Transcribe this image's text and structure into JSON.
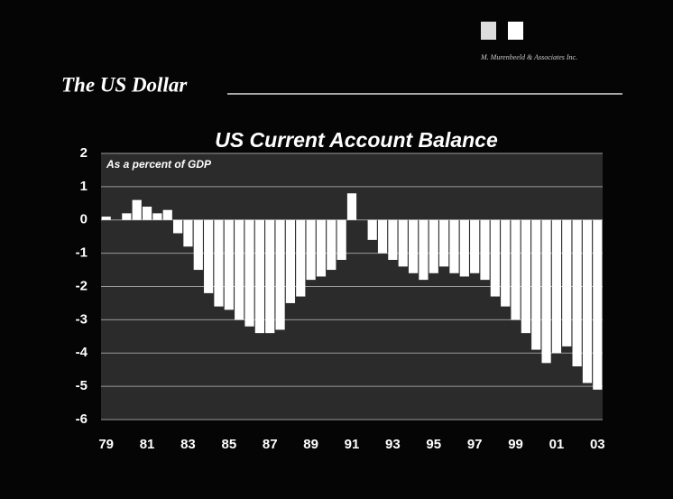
{
  "header": {
    "title": "The US Dollar",
    "logo_text": "M. Murenbeeld & Associates Inc."
  },
  "chart_data": {
    "type": "bar",
    "title": "US Current Account Balance",
    "subtitle": "As a percent of GDP",
    "color": "#ffffff",
    "grid": true,
    "ylim": [
      -6,
      2
    ],
    "yticks": [
      -6,
      -5,
      -4,
      -3,
      -2,
      -1,
      0,
      1,
      2
    ],
    "categories": [
      "79",
      null,
      null,
      null,
      "81",
      null,
      null,
      null,
      "83",
      null,
      null,
      null,
      "85",
      null,
      null,
      null,
      "87",
      null,
      null,
      null,
      "89",
      null,
      null,
      null,
      "91",
      null,
      null,
      null,
      "93",
      null,
      null,
      null,
      "95",
      null,
      null,
      null,
      "97",
      null,
      null,
      null,
      "99",
      null,
      null,
      null,
      "01",
      null,
      null,
      null,
      "03"
    ],
    "values": [
      0.1,
      0.0,
      0.2,
      0.6,
      0.4,
      0.2,
      0.3,
      -0.4,
      -0.8,
      -1.5,
      -2.2,
      -2.6,
      -2.7,
      -3.0,
      -3.2,
      -3.4,
      -3.4,
      -3.3,
      -2.5,
      -2.3,
      -1.8,
      -1.7,
      -1.5,
      -1.2,
      0.8,
      0.0,
      -0.6,
      -1.0,
      -1.2,
      -1.4,
      -1.6,
      -1.8,
      -1.6,
      -1.4,
      -1.6,
      -1.7,
      -1.6,
      -1.8,
      -2.3,
      -2.6,
      -3.0,
      -3.4,
      -3.9,
      -4.3,
      -4.0,
      -3.8,
      -4.4,
      -4.9,
      -5.1
    ]
  }
}
